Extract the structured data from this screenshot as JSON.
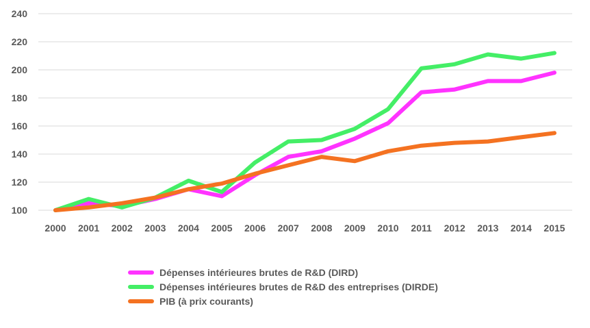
{
  "chart_data": {
    "type": "line",
    "title": "",
    "xlabel": "",
    "ylabel": "",
    "x": [
      "2000",
      "2001",
      "2002",
      "2003",
      "2004",
      "2005",
      "2006",
      "2007",
      "2008",
      "2009",
      "2010",
      "2011",
      "2012",
      "2013",
      "2014",
      "2015"
    ],
    "ylim": [
      100,
      240
    ],
    "yticks": [
      100,
      120,
      140,
      160,
      180,
      200,
      220,
      240
    ],
    "grid": true,
    "legend_position": "bottom",
    "series": [
      {
        "name": "Dépenses intérieures brutes de R&D (DIRD)",
        "color": "#ff33ff",
        "values": [
          100,
          105,
          103,
          108,
          115,
          110,
          125,
          138,
          142,
          151,
          162,
          184,
          186,
          192,
          192,
          198
        ]
      },
      {
        "name": "Dépenses intérieures brutes de R&D des entreprises (DIRDE)",
        "color": "#44ee66",
        "values": [
          100,
          108,
          102,
          109,
          121,
          113,
          134,
          149,
          150,
          158,
          172,
          201,
          204,
          211,
          208,
          212
        ]
      },
      {
        "name": "PIB (à prix courants)",
        "color": "#f47221",
        "values": [
          100,
          102,
          105,
          109,
          115,
          119,
          126,
          132,
          138,
          135,
          142,
          146,
          148,
          149,
          152,
          155
        ]
      }
    ]
  }
}
